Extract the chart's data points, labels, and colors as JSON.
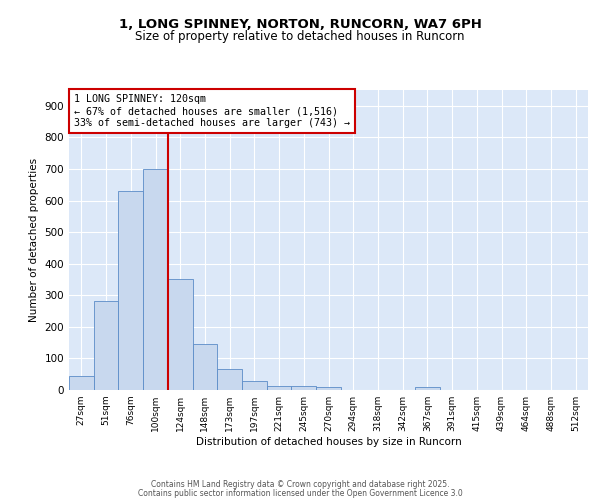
{
  "title1": "1, LONG SPINNEY, NORTON, RUNCORN, WA7 6PH",
  "title2": "Size of property relative to detached houses in Runcorn",
  "xlabel": "Distribution of detached houses by size in Runcorn",
  "ylabel": "Number of detached properties",
  "bar_labels": [
    "27sqm",
    "51sqm",
    "76sqm",
    "100sqm",
    "124sqm",
    "148sqm",
    "173sqm",
    "197sqm",
    "221sqm",
    "245sqm",
    "270sqm",
    "294sqm",
    "318sqm",
    "342sqm",
    "367sqm",
    "391sqm",
    "415sqm",
    "439sqm",
    "464sqm",
    "488sqm",
    "512sqm"
  ],
  "bar_values": [
    43,
    283,
    630,
    700,
    350,
    145,
    68,
    30,
    13,
    12,
    10,
    0,
    0,
    0,
    8,
    0,
    0,
    0,
    0,
    0,
    0
  ],
  "bar_color": "#c8d8ee",
  "bar_edge_color": "#5b8cc8",
  "vline_color": "#cc0000",
  "annotation_text": "1 LONG SPINNEY: 120sqm\n← 67% of detached houses are smaller (1,516)\n33% of semi-detached houses are larger (743) →",
  "annotation_box_color": "white",
  "annotation_box_edge": "#cc0000",
  "ylim": [
    0,
    950
  ],
  "yticks": [
    0,
    100,
    200,
    300,
    400,
    500,
    600,
    700,
    800,
    900
  ],
  "plot_bg": "#dce8f8",
  "footer1": "Contains HM Land Registry data © Crown copyright and database right 2025.",
  "footer2": "Contains public sector information licensed under the Open Government Licence 3.0"
}
